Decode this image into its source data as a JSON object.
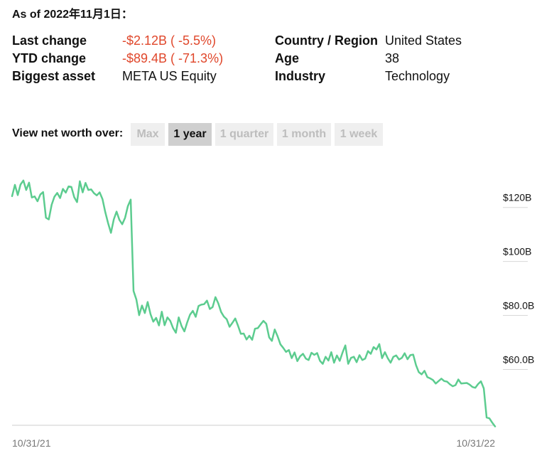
{
  "as_of": "As of 2022年11月1日：",
  "stats": {
    "left": [
      {
        "label": "Last change",
        "value": "-$2.12B ( -5.5%)",
        "negative": true
      },
      {
        "label": "YTD change",
        "value": "-$89.4B ( -71.3%)",
        "negative": true
      },
      {
        "label": "Biggest asset",
        "value": "META US Equity",
        "negative": false
      }
    ],
    "right": [
      {
        "label": "Country / Region",
        "value": "United States"
      },
      {
        "label": "Age",
        "value": "38"
      },
      {
        "label": "Industry",
        "value": "Technology"
      }
    ]
  },
  "view": {
    "label": "View net worth over:",
    "tabs": [
      {
        "label": "Max",
        "active": false
      },
      {
        "label": "1 year",
        "active": true
      },
      {
        "label": "1 quarter",
        "active": false
      },
      {
        "label": "1 month",
        "active": false
      },
      {
        "label": "1 week",
        "active": false
      }
    ]
  },
  "colors": {
    "line": "#5ccc8f",
    "negative": "#e0472b",
    "axis": "#cccccc"
  },
  "chart_data": {
    "type": "line",
    "x_tick_labels": [
      "10/31/21",
      "10/31/22"
    ],
    "y_tick_labels": [
      "$120B",
      "$100B",
      "$80.0B",
      "$60.0B"
    ],
    "y_ticks": [
      120,
      100,
      80,
      60
    ],
    "ylim": [
      35.1,
      127.3
    ],
    "grid": false,
    "series": [
      {
        "values": [
          120.5,
          124.7,
          120.9,
          124.8,
          126.3,
          122.8,
          125.5,
          120.0,
          120.4,
          118.6,
          121.1,
          122.0,
          112.5,
          111.9,
          117.3,
          120.3,
          121.7,
          119.8,
          123.2,
          121.8,
          124.1,
          123.9,
          120.1,
          118.3,
          126.0,
          121.9,
          125.4,
          122.8,
          123.0,
          121.6,
          120.8,
          121.9,
          119.4,
          114.6,
          110.5,
          106.9,
          111.9,
          114.8,
          111.7,
          110.1,
          112.5,
          116.8,
          119.2,
          85.4,
          82.2,
          76.4,
          80.0,
          77.2,
          81.3,
          76.8,
          74.0,
          75.4,
          72.6,
          77.7,
          72.7,
          75.6,
          74.3,
          71.6,
          69.9,
          75.6,
          72.4,
          70.4,
          73.7,
          76.6,
          78.0,
          75.8,
          79.8,
          80.3,
          80.5,
          81.8,
          78.7,
          79.4,
          83.1,
          80.8,
          77.6,
          75.9,
          74.9,
          72.1,
          73.6,
          75.2,
          72.5,
          69.5,
          69.6,
          67.4,
          68.8,
          67.3,
          71.4,
          71.6,
          73.0,
          74.3,
          73.2,
          68.2,
          66.9,
          71.1,
          68.6,
          65.6,
          64.3,
          62.8,
          63.5,
          60.5,
          62.6,
          59.4,
          61.2,
          62.1,
          60.3,
          59.8,
          62.5,
          61.7,
          62.4,
          59.5,
          58.4,
          61.0,
          59.6,
          62.7,
          58.8,
          61.5,
          59.5,
          62.6,
          65.2,
          58.4,
          60.6,
          61.0,
          59.0,
          61.6,
          59.8,
          60.3,
          63.1,
          62.1,
          64.6,
          63.7,
          65.7,
          60.5,
          62.7,
          60.5,
          58.8,
          61.0,
          61.5,
          60.0,
          60.6,
          62.3,
          60.1,
          61.6,
          61.8,
          57.9,
          55.3,
          54.5,
          55.8,
          53.5,
          53.0,
          52.4,
          51.1,
          52.0,
          52.9,
          52.0,
          51.8,
          50.8,
          50.1,
          50.5,
          52.6,
          51.1,
          51.2,
          51.3,
          50.7,
          49.8,
          49.5,
          50.9,
          51.9,
          49.3,
          38.5,
          38.2,
          36.6,
          35.2
        ]
      }
    ]
  }
}
